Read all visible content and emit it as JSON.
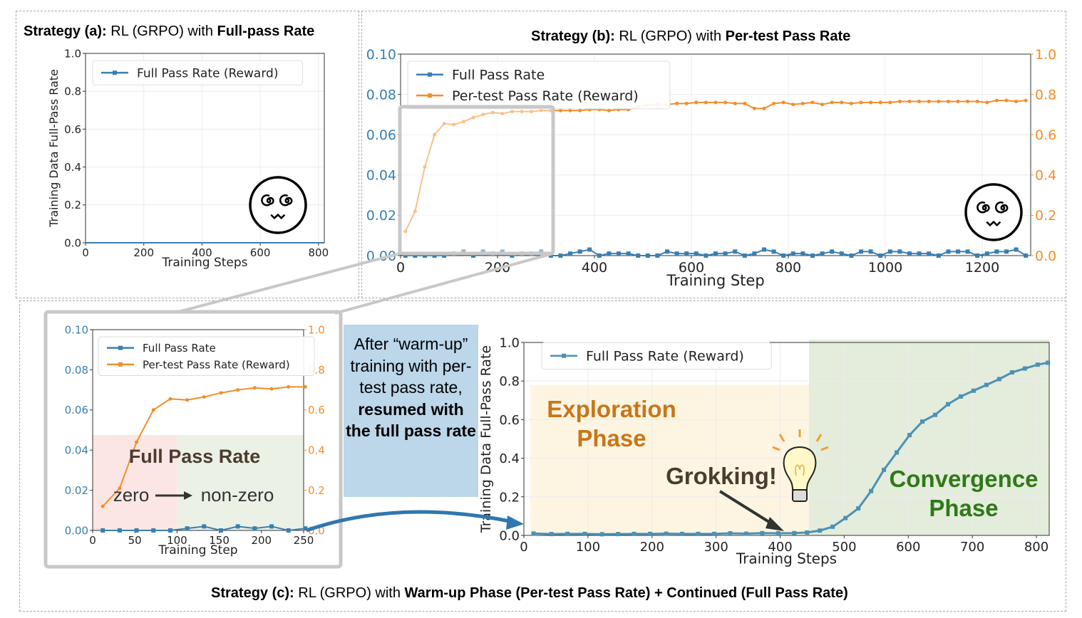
{
  "titles": {
    "a": {
      "prefix": "Strategy (a):",
      "mid": " RL (GRPO) with ",
      "bold": "Full-pass Rate"
    },
    "b": {
      "prefix": "Strategy (b):",
      "mid": " RL (GRPO) with ",
      "bold": "Per-test Pass Rate"
    },
    "c": {
      "prefix": "Strategy (c):",
      "mid": " RL (GRPO) with ",
      "bold": "Warm-up Phase (Per-test Pass Rate) + Continued (Full Pass Rate)"
    }
  },
  "callout": {
    "line1": "After “warm-up” training with per-test pass rate,",
    "bold": "resumed with the full pass rate"
  },
  "annotations": {
    "zoom_full_pass": "Full Pass Rate",
    "zoom_zero": "zero",
    "zoom_nonzero": "non-zero",
    "exploration": "Exploration Phase",
    "grokking": "Grokking!",
    "convergence": "Convergence Phase"
  },
  "colors": {
    "blue": "#3a7fb0",
    "orange": "#f28e2b",
    "teal": "#4a92b5",
    "explore_bg": "#fdf5e1",
    "converge_bg": "#e4ecdc",
    "explore_text": "#c8761a",
    "converge_text": "#2f7a17",
    "grok_text": "#4a3d30"
  },
  "chart_data": [
    {
      "id": "a",
      "type": "line",
      "title": "Strategy (a): RL (GRPO) with Full-pass Rate",
      "xlabel": "Training Steps",
      "ylabel": "Training Data Full-Pass Rate",
      "xlim": [
        0,
        820
      ],
      "ylim": [
        0,
        1.0
      ],
      "xticks": [
        0,
        200,
        400,
        600,
        800
      ],
      "yticks": [
        0.0,
        0.2,
        0.4,
        0.6,
        0.8,
        1.0
      ],
      "xtick_labels": [
        "0",
        "200",
        "400",
        "600",
        "800"
      ],
      "ytick_labels": [
        "0.0",
        "0.2",
        "0.4",
        "0.6",
        "0.8",
        "1.0"
      ],
      "legend": "top",
      "grid": true,
      "series": [
        {
          "name": "Full Pass Rate (Reward)",
          "x": [
            0,
            820
          ],
          "y": [
            0,
            0
          ],
          "markers": false,
          "color": "#3a7fb0"
        }
      ]
    },
    {
      "id": "b",
      "type": "line",
      "title": "Strategy (b): RL (GRPO) with Per-test Pass Rate",
      "xlabel": "Training Step",
      "xlim": [
        0,
        1300
      ],
      "ylim": [
        0,
        0.1
      ],
      "y2lim": [
        0,
        1.0
      ],
      "xticks": [
        0,
        200,
        400,
        600,
        800,
        1000,
        1200
      ],
      "xtick_labels": [
        "0",
        "200",
        "400",
        "600",
        "800",
        "1000",
        "1200"
      ],
      "yticks": [
        0,
        0.02,
        0.04,
        0.06,
        0.08,
        0.1
      ],
      "ytick_labels": [
        "0.00",
        "0.02",
        "0.04",
        "0.06",
        "0.08",
        "0.10"
      ],
      "y2ticks": [
        0,
        0.2,
        0.4,
        0.6,
        0.8,
        1.0
      ],
      "y2tick_labels": [
        "0.0",
        "0.2",
        "0.4",
        "0.6",
        "0.8",
        "1.0"
      ],
      "legend": "top-left",
      "grid": true,
      "series": [
        {
          "name": "Full Pass Rate",
          "axis": "left",
          "color": "#3a7fb0",
          "x_start": 10,
          "x_step": 20,
          "y": [
            0,
            0,
            0,
            0,
            0,
            0.001,
            0.002,
            0,
            0.002,
            0.001,
            0.002,
            0,
            0.001,
            0.001,
            0.002,
            0,
            0,
            0.001,
            0.002,
            0.003,
            0,
            0.001,
            0.001,
            0.001,
            0,
            0,
            0,
            0.002,
            0.001,
            0.001,
            0.001,
            0,
            0.001,
            0.001,
            0.002,
            0,
            0.001,
            0.003,
            0.002,
            0,
            0.001,
            0.001,
            0,
            0.001,
            0.002,
            0.001,
            0,
            0.002,
            0.002,
            0,
            0.002,
            0.002,
            0.001,
            0.001,
            0.001,
            0,
            0.002,
            0.002,
            0.002,
            0,
            0.001,
            0.002,
            0.002,
            0.003,
            0
          ]
        },
        {
          "name": "Per-test Pass Rate (Reward)",
          "axis": "right",
          "color": "#f28e2b",
          "x_start": 10,
          "x_step": 20,
          "y": [
            0.12,
            0.22,
            0.44,
            0.6,
            0.655,
            0.65,
            0.665,
            0.685,
            0.7,
            0.71,
            0.705,
            0.715,
            0.715,
            0.715,
            0.72,
            0.72,
            0.72,
            0.72,
            0.72,
            0.725,
            0.725,
            0.72,
            0.725,
            0.725,
            0.74,
            0.745,
            0.75,
            0.75,
            0.755,
            0.755,
            0.76,
            0.76,
            0.76,
            0.76,
            0.755,
            0.755,
            0.73,
            0.73,
            0.755,
            0.76,
            0.75,
            0.755,
            0.76,
            0.75,
            0.76,
            0.76,
            0.755,
            0.76,
            0.76,
            0.76,
            0.76,
            0.765,
            0.765,
            0.765,
            0.765,
            0.765,
            0.765,
            0.765,
            0.765,
            0.765,
            0.76,
            0.77,
            0.77,
            0.765,
            0.77
          ]
        }
      ]
    },
    {
      "id": "c_zoom",
      "type": "line",
      "xlabel": "Training Step",
      "xlim": [
        0,
        250
      ],
      "ylim": [
        0,
        0.1
      ],
      "y2lim": [
        0,
        1.0
      ],
      "xticks": [
        0,
        50,
        100,
        150,
        200,
        250
      ],
      "xtick_labels": [
        "0",
        "50",
        "100",
        "150",
        "200",
        "250"
      ],
      "yticks": [
        0,
        0.02,
        0.04,
        0.06,
        0.08,
        0.1
      ],
      "ytick_labels": [
        "0.00",
        "0.02",
        "0.04",
        "0.06",
        "0.08",
        "0.10"
      ],
      "y2ticks": [
        0,
        0.2,
        0.4,
        0.6,
        0.8,
        1.0
      ],
      "y2tick_labels": [
        "0.0",
        "0.2",
        "0.4",
        "0.6",
        "0.8",
        "1.0"
      ],
      "legend": "top",
      "grid": false,
      "series": [
        {
          "name": "Full Pass Rate",
          "axis": "left",
          "color": "#3a7fb0",
          "x_start": 12,
          "x_step": 20,
          "y": [
            0,
            0,
            0,
            0,
            0,
            0.001,
            0.002,
            0,
            0.002,
            0.001,
            0.002,
            0,
            0.001
          ]
        },
        {
          "name": "Per-test Pass Rate (Reward)",
          "axis": "right",
          "color": "#f28e2b",
          "x_start": 12,
          "x_step": 20,
          "y": [
            0.12,
            0.21,
            0.44,
            0.6,
            0.655,
            0.65,
            0.665,
            0.685,
            0.7,
            0.71,
            0.705,
            0.715,
            0.715
          ]
        }
      ]
    },
    {
      "id": "c",
      "type": "line",
      "xlabel": "Training Steps",
      "ylabel": "Training Data Full-Pass Rate",
      "xlim": [
        0,
        820
      ],
      "ylim": [
        0,
        1.0
      ],
      "xticks": [
        0,
        100,
        200,
        300,
        400,
        500,
        600,
        700,
        800
      ],
      "xtick_labels": [
        "0",
        "100",
        "200",
        "300",
        "400",
        "500",
        "600",
        "700",
        "800"
      ],
      "yticks": [
        0,
        0.2,
        0.4,
        0.6,
        0.8,
        1.0
      ],
      "ytick_labels": [
        "0.0",
        "0.2",
        "0.4",
        "0.6",
        "0.8",
        "1.0"
      ],
      "legend": "top",
      "grid": true,
      "phases": [
        {
          "name": "Exploration Phase",
          "x": [
            10,
            445
          ]
        },
        {
          "name": "Convergence Phase",
          "x": [
            445,
            820
          ]
        }
      ],
      "series": [
        {
          "name": "Full Pass Rate (Reward)",
          "axis": "left",
          "color": "#4a92b5",
          "x": [
            15,
            43,
            68,
            95,
            122,
            147,
            172,
            197,
            222,
            247,
            272,
            297,
            322,
            347,
            372,
            397,
            422,
            442,
            462,
            482,
            502,
            522,
            542,
            562,
            582,
            602,
            622,
            642,
            662,
            682,
            702,
            722,
            742,
            762,
            782,
            802,
            818
          ],
          "y": [
            0.01,
            0.007,
            0.008,
            0.008,
            0.006,
            0.007,
            0.008,
            0.008,
            0.009,
            0.008,
            0.008,
            0.008,
            0.011,
            0.009,
            0.012,
            0.011,
            0.012,
            0.015,
            0.025,
            0.045,
            0.09,
            0.14,
            0.23,
            0.34,
            0.43,
            0.52,
            0.59,
            0.625,
            0.68,
            0.72,
            0.75,
            0.78,
            0.81,
            0.845,
            0.865,
            0.885,
            0.895
          ]
        }
      ]
    }
  ]
}
